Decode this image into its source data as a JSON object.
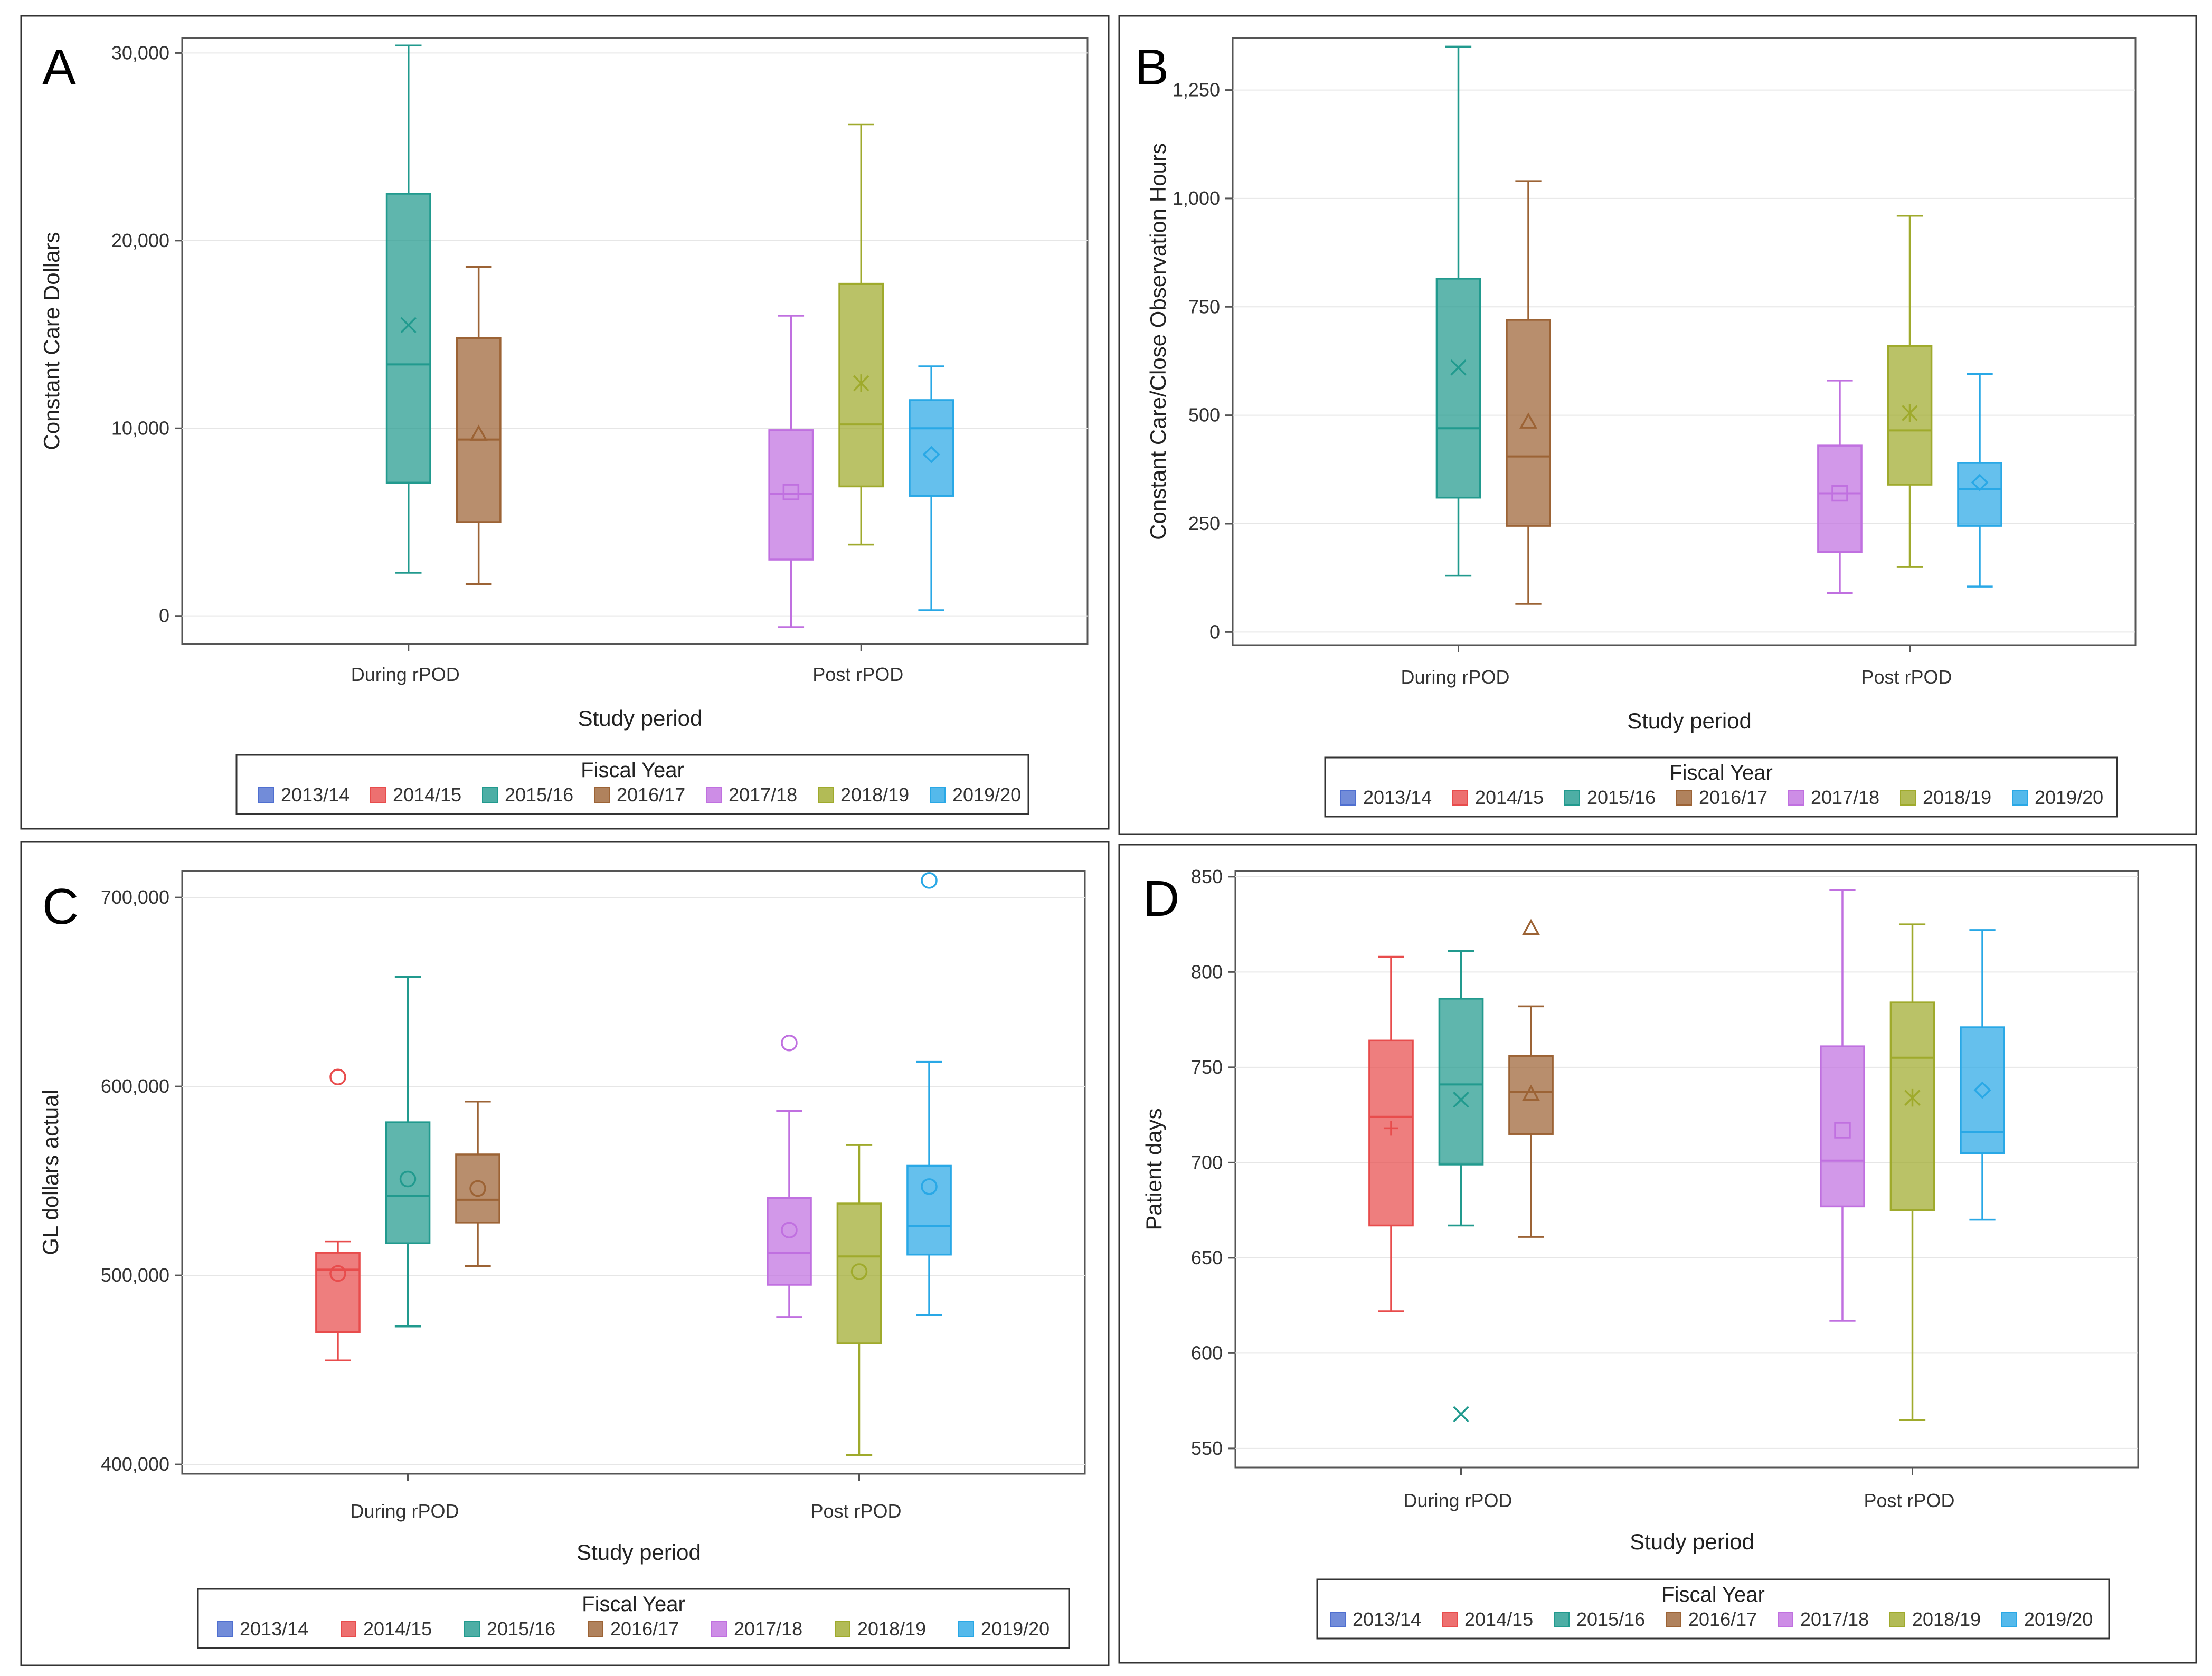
{
  "figure": {
    "colors": {
      "2013/14": "#4f6fd0",
      "2014/15": "#e84c4c",
      "2015/16": "#219a8e",
      "2016/17": "#9c6335",
      "2017/18": "#c070e0",
      "2018/19": "#9faa2c",
      "2019/20": "#29a8e6"
    }
  },
  "chart_data": [
    {
      "panel_label": "A",
      "type": "box",
      "title": "",
      "xlabel": "Study period",
      "ylabel": "Constant Care Dollars",
      "categories": [
        "During rPOD",
        "Post rPOD"
      ],
      "ylim": [
        -1500,
        30800
      ],
      "yticks": [
        0,
        10000,
        20000,
        30000
      ],
      "ytick_labels": [
        "0",
        "10,000",
        "20,000",
        "30,000"
      ],
      "legend": {
        "title": "Fiscal Year",
        "position": "bottom",
        "entries": [
          "2013/14",
          "2014/15",
          "2015/16",
          "2016/17",
          "2017/18",
          "2018/19",
          "2019/20"
        ]
      },
      "boxes": [
        {
          "category": "During rPOD",
          "series": "2015/16",
          "slot": 2,
          "min": 2300,
          "q1": 7100,
          "median": 13400,
          "q3": 22500,
          "max": 30400,
          "mean": 15500,
          "marker": "x",
          "outliers": []
        },
        {
          "category": "During rPOD",
          "series": "2016/17",
          "slot": 3,
          "min": 1700,
          "q1": 5000,
          "median": 9400,
          "q3": 14800,
          "max": 18600,
          "mean": 9700,
          "marker": "triangle",
          "outliers": []
        },
        {
          "category": "Post rPOD",
          "series": "2017/18",
          "slot": 4,
          "min": -600,
          "q1": 3000,
          "median": 6500,
          "q3": 9900,
          "max": 16000,
          "mean": 6600,
          "marker": "square",
          "outliers": []
        },
        {
          "category": "Post rPOD",
          "series": "2018/19",
          "slot": 5,
          "min": 3800,
          "q1": 6900,
          "median": 10200,
          "q3": 17700,
          "max": 26200,
          "mean": 12400,
          "marker": "star",
          "outliers": []
        },
        {
          "category": "Post rPOD",
          "series": "2019/20",
          "slot": 6,
          "min": 300,
          "q1": 6400,
          "median": 10000,
          "q3": 11500,
          "max": 13300,
          "mean": 8600,
          "marker": "diamond",
          "outliers": []
        }
      ]
    },
    {
      "panel_label": "B",
      "type": "box",
      "title": "",
      "xlabel": "Study period",
      "ylabel": "Constant Care/Close Observation Hours",
      "categories": [
        "During rPOD",
        "Post rPOD"
      ],
      "ylim": [
        -30,
        1370
      ],
      "yticks": [
        0,
        250,
        500,
        750,
        1000,
        1250
      ],
      "ytick_labels": [
        "0",
        "250",
        "500",
        "750",
        "1,000",
        "1,250"
      ],
      "legend": {
        "title": "Fiscal Year",
        "position": "bottom",
        "entries": [
          "2013/14",
          "2014/15",
          "2015/16",
          "2016/17",
          "2017/18",
          "2018/19",
          "2019/20"
        ]
      },
      "boxes": [
        {
          "category": "During rPOD",
          "series": "2015/16",
          "slot": 2,
          "min": 130,
          "q1": 310,
          "median": 470,
          "q3": 815,
          "max": 1350,
          "mean": 610,
          "marker": "x",
          "outliers": []
        },
        {
          "category": "During rPOD",
          "series": "2016/17",
          "slot": 3,
          "min": 65,
          "q1": 245,
          "median": 405,
          "q3": 720,
          "max": 1040,
          "mean": 485,
          "marker": "triangle",
          "outliers": []
        },
        {
          "category": "Post rPOD",
          "series": "2017/18",
          "slot": 4,
          "min": 90,
          "q1": 185,
          "median": 320,
          "q3": 430,
          "max": 580,
          "mean": 320,
          "marker": "square",
          "outliers": []
        },
        {
          "category": "Post rPOD",
          "series": "2018/19",
          "slot": 5,
          "min": 150,
          "q1": 340,
          "median": 465,
          "q3": 660,
          "max": 960,
          "mean": 505,
          "marker": "star",
          "outliers": []
        },
        {
          "category": "Post rPOD",
          "series": "2019/20",
          "slot": 6,
          "min": 105,
          "q1": 245,
          "median": 330,
          "q3": 390,
          "max": 595,
          "mean": 345,
          "marker": "diamond",
          "outliers": []
        }
      ]
    },
    {
      "panel_label": "C",
      "type": "box",
      "title": "",
      "xlabel": "Study period",
      "ylabel": "GL dollars actual",
      "categories": [
        "During rPOD",
        "Post rPOD"
      ],
      "ylim": [
        395000,
        714000
      ],
      "yticks": [
        400000,
        500000,
        600000,
        700000
      ],
      "ytick_labels": [
        "400,000",
        "500,000",
        "600,000",
        "700,000"
      ],
      "legend": {
        "title": "Fiscal Year",
        "position": "bottom",
        "entries": [
          "2013/14",
          "2014/15",
          "2015/16",
          "2016/17",
          "2017/18",
          "2018/19",
          "2019/20"
        ]
      },
      "boxes": [
        {
          "category": "During rPOD",
          "series": "2014/15",
          "slot": 1,
          "min": 455000,
          "q1": 470000,
          "median": 503000,
          "q3": 512000,
          "max": 518000,
          "mean": 501000,
          "marker": "circle",
          "outliers": [
            605000
          ]
        },
        {
          "category": "During rPOD",
          "series": "2015/16",
          "slot": 2,
          "min": 473000,
          "q1": 517000,
          "median": 542000,
          "q3": 581000,
          "max": 658000,
          "mean": 551000,
          "marker": "circle",
          "outliers": []
        },
        {
          "category": "During rPOD",
          "series": "2016/17",
          "slot": 3,
          "min": 505000,
          "q1": 528000,
          "median": 540000,
          "q3": 564000,
          "max": 592000,
          "mean": 546000,
          "marker": "circle",
          "outliers": []
        },
        {
          "category": "Post rPOD",
          "series": "2017/18",
          "slot": 4,
          "min": 478000,
          "q1": 495000,
          "median": 512000,
          "q3": 541000,
          "max": 587000,
          "mean": 524000,
          "marker": "circle",
          "outliers": [
            623000
          ]
        },
        {
          "category": "Post rPOD",
          "series": "2018/19",
          "slot": 5,
          "min": 405000,
          "q1": 464000,
          "median": 510000,
          "q3": 538000,
          "max": 569000,
          "mean": 502000,
          "marker": "circle",
          "outliers": []
        },
        {
          "category": "Post rPOD",
          "series": "2019/20",
          "slot": 6,
          "min": 479000,
          "q1": 511000,
          "median": 526000,
          "q3": 558000,
          "max": 613000,
          "mean": 547000,
          "marker": "circle",
          "outliers": [
            709000
          ]
        }
      ]
    },
    {
      "panel_label": "D",
      "type": "box",
      "title": "",
      "xlabel": "Study period",
      "ylabel": "Patient days",
      "categories": [
        "During rPOD",
        "Post rPOD"
      ],
      "ylim": [
        540,
        853
      ],
      "yticks": [
        550,
        600,
        650,
        700,
        750,
        800,
        850
      ],
      "ytick_labels": [
        "550",
        "600",
        "650",
        "700",
        "750",
        "800",
        "850"
      ],
      "legend": {
        "title": "Fiscal Year",
        "position": "bottom",
        "entries": [
          "2013/14",
          "2014/15",
          "2015/16",
          "2016/17",
          "2017/18",
          "2018/19",
          "2019/20"
        ]
      },
      "boxes": [
        {
          "category": "During rPOD",
          "series": "2014/15",
          "slot": 1,
          "min": 622,
          "q1": 667,
          "median": 724,
          "q3": 764,
          "max": 808,
          "mean": 718,
          "marker": "plus",
          "outliers": []
        },
        {
          "category": "During rPOD",
          "series": "2015/16",
          "slot": 2,
          "min": 667,
          "q1": 699,
          "median": 741,
          "q3": 786,
          "max": 811,
          "mean": 733,
          "marker": "x",
          "outliers": [
            568
          ]
        },
        {
          "category": "During rPOD",
          "series": "2016/17",
          "slot": 3,
          "min": 661,
          "q1": 715,
          "median": 737,
          "q3": 756,
          "max": 782,
          "mean": 736,
          "marker": "triangle",
          "outliers": [
            823
          ]
        },
        {
          "category": "Post rPOD",
          "series": "2017/18",
          "slot": 4,
          "min": 617,
          "q1": 677,
          "median": 701,
          "q3": 761,
          "max": 843,
          "mean": 717,
          "marker": "square",
          "outliers": []
        },
        {
          "category": "Post rPOD",
          "series": "2018/19",
          "slot": 5,
          "min": 565,
          "q1": 675,
          "median": 755,
          "q3": 784,
          "max": 825,
          "mean": 734,
          "marker": "star",
          "outliers": []
        },
        {
          "category": "Post rPOD",
          "series": "2019/20",
          "slot": 6,
          "min": 670,
          "q1": 705,
          "median": 716,
          "q3": 771,
          "max": 822,
          "mean": 738,
          "marker": "diamond",
          "outliers": []
        }
      ]
    }
  ]
}
